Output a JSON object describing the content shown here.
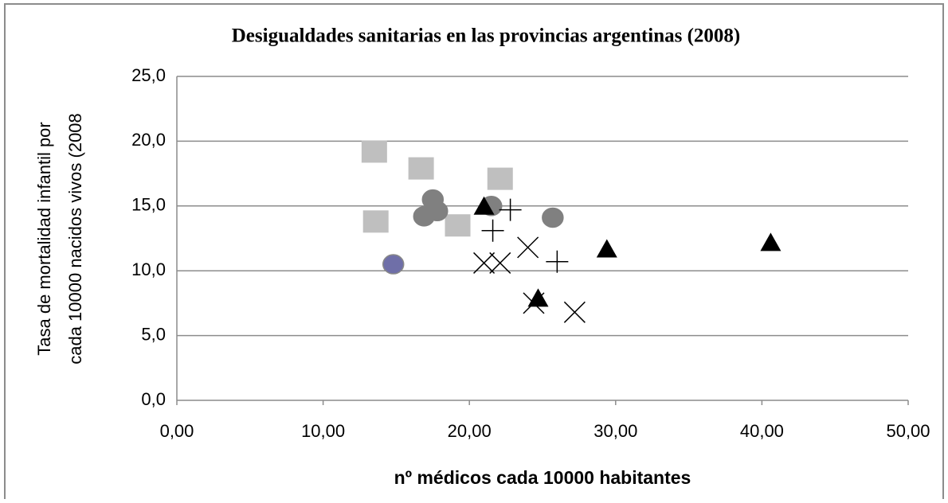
{
  "chart_data": {
    "type": "scatter",
    "title": "Desigualdades sanitarias en las provincias argentinas (2008)",
    "xlabel": "nº médicos cada 10000 habitantes",
    "ylabel": [
      "Tasa de mortalidad infantil por",
      "cada 10000 nacidos vivos (2008"
    ],
    "xlim": [
      0,
      50
    ],
    "xticks": [
      {
        "value": 0,
        "label": "0,00"
      },
      {
        "value": 10,
        "label": "10,00"
      },
      {
        "value": 20,
        "label": "20,00"
      },
      {
        "value": 30,
        "label": "30,00"
      },
      {
        "value": 40,
        "label": "40,00"
      },
      {
        "value": 50,
        "label": "50,00"
      }
    ],
    "ylim": [
      0,
      25
    ],
    "yticks": [
      {
        "value": 0,
        "label": "0,0"
      },
      {
        "value": 5,
        "label": "5,0"
      },
      {
        "value": 10,
        "label": "10,0"
      },
      {
        "value": 15,
        "label": "15,0"
      },
      {
        "value": 20,
        "label": "20,0"
      },
      {
        "value": 25,
        "label": "25,0"
      }
    ],
    "grid": true,
    "series": [
      {
        "marker": "square",
        "color": "#bfbfbf",
        "x": [
          13.5,
          16.7,
          22.1,
          13.6,
          19.2
        ],
        "y": [
          19.2,
          17.9,
          17.1,
          13.8,
          13.5
        ]
      },
      {
        "marker": "circle",
        "color": "#808080",
        "x": [
          17.5,
          16.9,
          17.8,
          21.5,
          25.7
        ],
        "y": [
          15.5,
          14.2,
          14.6,
          15.0,
          14.1
        ]
      },
      {
        "marker": "circle",
        "color": "#6f6fa8",
        "x": [
          14.8
        ],
        "y": [
          10.5
        ]
      },
      {
        "marker": "triangle",
        "color": "#000000",
        "x": [
          21.0,
          29.4,
          40.6,
          24.7
        ],
        "y": [
          15.0,
          11.7,
          12.2,
          7.9
        ]
      },
      {
        "marker": "plus",
        "color": "#000000",
        "x": [
          22.8,
          21.6,
          26.0
        ],
        "y": [
          14.7,
          13.1,
          10.7
        ]
      },
      {
        "marker": "cross",
        "color": "#000000",
        "x": [
          21.0,
          22.1,
          24.0,
          24.4,
          27.2
        ],
        "y": [
          10.6,
          10.6,
          11.8,
          7.5,
          6.8
        ]
      }
    ]
  }
}
